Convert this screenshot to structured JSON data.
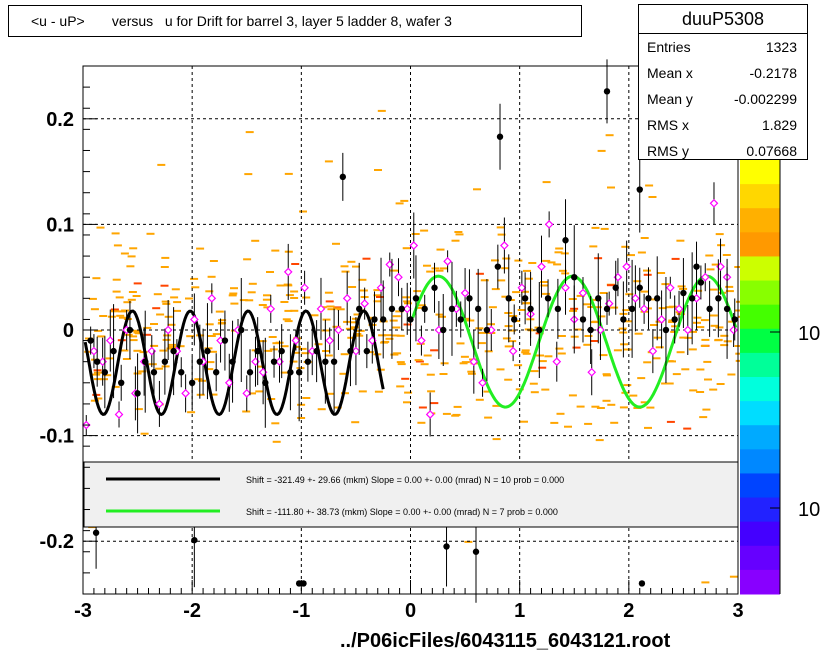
{
  "title": "<u - uP>       versus   u for Drift for barrel 3, layer 5 ladder 8, wafer 3",
  "stats": {
    "name": "duuP5308",
    "rows": [
      {
        "label": "Entries",
        "value": "1323"
      },
      {
        "label": "Mean x",
        "value": "-0.2178"
      },
      {
        "label": "Mean y",
        "value": "-0.002299"
      },
      {
        "label": "RMS x",
        "value": "1.829"
      },
      {
        "label": "RMS y",
        "value": "0.07668"
      }
    ]
  },
  "footer": "../P06icFiles/6043115_6043121.root",
  "colors": {
    "hist": "#ffa500",
    "hist_hot": "#ff4500",
    "black_fit": "#000000",
    "green_fit": "#22ee22",
    "open_marker": "#ff00ff",
    "black_marker": "#000000"
  },
  "chart_data": {
    "type": "scatter",
    "xlim": [
      -3,
      3
    ],
    "ylim": [
      -0.25,
      0.25
    ],
    "x_ticks": [
      "-3",
      "-2",
      "-1",
      "0",
      "1",
      "2",
      "3"
    ],
    "y_ticks": [
      {
        "v": 0.2,
        "label": "0.2"
      },
      {
        "v": 0.1,
        "label": "0.1"
      },
      {
        "v": 0,
        "label": "0"
      },
      {
        "v": -0.1,
        "label": "-0.1"
      },
      {
        "v": -0.2,
        "label": "-0.2"
      }
    ],
    "grid": true,
    "colorbar_labels": [
      {
        "v": 10,
        "label": "10"
      },
      {
        "v": 1,
        "label": "10"
      }
    ],
    "legend": [
      {
        "color": "#000000",
        "text": "Shift =  -321.49 +- 29.66 (mkm) Slope =     0.00 +- 0.00 (mrad)  N = 10 prob = 0.000"
      },
      {
        "color": "#22ee22",
        "text": "Shift =  -111.80 +- 38.73 (mkm) Slope =     0.00 +- 0.00 (mrad)  N = 7 prob = 0.000"
      }
    ],
    "fits": [
      {
        "name": "black",
        "color": "#000000",
        "x_range": [
          -2.98,
          -0.25
        ],
        "amplitude": 0.049,
        "offset": -0.031,
        "period": 0.53,
        "phase": 0.36
      },
      {
        "name": "green",
        "color": "#22ee22",
        "x_range": [
          0.02,
          2.98
        ],
        "amplitude": 0.062,
        "offset": -0.011,
        "period": 1.23,
        "phase": 0.27
      }
    ],
    "black_points": [
      [
        -2.93,
        -0.01
      ],
      [
        -2.87,
        -0.03
      ],
      [
        -2.8,
        -0.04
      ],
      [
        -2.72,
        -0.02
      ],
      [
        -2.65,
        -0.05
      ],
      [
        -2.57,
        0.0
      ],
      [
        -2.5,
        -0.06
      ],
      [
        -2.43,
        -0.03
      ],
      [
        -2.35,
        -0.04
      ],
      [
        -2.25,
        -0.03
      ],
      [
        -2.17,
        -0.02
      ],
      [
        -2.1,
        -0.04
      ],
      [
        -2.0,
        -0.05
      ],
      [
        -1.93,
        -0.03
      ],
      [
        -1.86,
        -0.02
      ],
      [
        -1.78,
        -0.04
      ],
      [
        -1.7,
        -0.01
      ],
      [
        -1.63,
        -0.03
      ],
      [
        -1.55,
        0.0
      ],
      [
        -1.47,
        -0.04
      ],
      [
        -1.4,
        -0.02
      ],
      [
        -1.33,
        -0.05
      ],
      [
        -1.25,
        -0.03
      ],
      [
        -1.18,
        -0.02
      ],
      [
        -1.1,
        -0.04
      ],
      [
        -1.02,
        -0.04
      ],
      [
        -0.94,
        -0.03
      ],
      [
        -0.86,
        -0.02
      ],
      [
        -0.78,
        -0.03
      ],
      [
        -0.7,
        -0.03
      ],
      [
        -0.62,
        0.145
      ],
      [
        -0.55,
        -0.02
      ],
      [
        -0.47,
        0.02
      ],
      [
        -0.4,
        -0.02
      ],
      [
        -0.33,
        0.01
      ],
      [
        -0.25,
        0.01
      ],
      [
        -0.17,
        0.02
      ],
      [
        -0.08,
        0.02
      ],
      [
        0.0,
        0.01
      ],
      [
        0.05,
        0.03
      ],
      [
        0.13,
        0.02
      ],
      [
        0.22,
        0.04
      ],
      [
        0.3,
        0.0
      ],
      [
        0.38,
        0.02
      ],
      [
        0.46,
        0.01
      ],
      [
        0.54,
        0.03
      ],
      [
        0.62,
        0.02
      ],
      [
        0.7,
        0.0
      ],
      [
        0.8,
        0.06
      ],
      [
        0.82,
        0.183
      ],
      [
        0.9,
        0.03
      ],
      [
        0.95,
        0.01
      ],
      [
        1.05,
        0.03
      ],
      [
        1.1,
        0.02
      ],
      [
        1.18,
        0.0
      ],
      [
        1.26,
        0.03
      ],
      [
        1.35,
        0.02
      ],
      [
        1.42,
        0.085
      ],
      [
        1.5,
        0.05
      ],
      [
        1.58,
        0.01
      ],
      [
        1.65,
        0.0
      ],
      [
        1.72,
        0.03
      ],
      [
        1.8,
        0.02
      ],
      [
        1.88,
        0.04
      ],
      [
        1.95,
        0.01
      ],
      [
        2.03,
        0.02
      ],
      [
        2.1,
        0.04
      ],
      [
        2.18,
        0.03
      ],
      [
        2.26,
        0.03
      ],
      [
        2.34,
        0.0
      ],
      [
        2.42,
        0.01
      ],
      [
        2.5,
        0.035
      ],
      [
        2.58,
        0.03
      ],
      [
        2.66,
        0.045
      ],
      [
        2.74,
        0.02
      ],
      [
        2.82,
        0.03
      ],
      [
        2.9,
        0.02
      ],
      [
        2.97,
        0.01
      ],
      [
        1.8,
        0.226
      ],
      [
        2.1,
        0.133
      ],
      [
        2.15,
        0.2
      ],
      [
        2.62,
        0.06
      ],
      [
        -2.88,
        -0.192
      ],
      [
        -1.98,
        -0.199
      ],
      [
        -1.02,
        -0.24
      ],
      [
        -0.98,
        -0.24
      ],
      [
        0.33,
        -0.205
      ],
      [
        0.6,
        -0.21
      ],
      [
        2.12,
        -0.24
      ]
    ],
    "open_points": [
      [
        -2.97,
        -0.09
      ],
      [
        -2.9,
        -0.02
      ],
      [
        -2.82,
        -0.03
      ],
      [
        -2.75,
        -0.01
      ],
      [
        -2.67,
        -0.08
      ],
      [
        -2.6,
        0.0
      ],
      [
        -2.52,
        -0.06
      ],
      [
        -2.44,
        -0.03
      ],
      [
        -2.37,
        -0.02
      ],
      [
        -2.3,
        -0.07
      ],
      [
        -2.22,
        0.0
      ],
      [
        -2.14,
        -0.02
      ],
      [
        -2.06,
        -0.06
      ],
      [
        -1.98,
        0.01
      ],
      [
        -1.9,
        -0.03
      ],
      [
        -1.82,
        0.03
      ],
      [
        -1.74,
        -0.01
      ],
      [
        -1.66,
        -0.05
      ],
      [
        -1.58,
        0.0
      ],
      [
        -1.5,
        -0.06
      ],
      [
        -1.42,
        -0.03
      ],
      [
        -1.35,
        -0.04
      ],
      [
        -1.28,
        0.02
      ],
      [
        -1.2,
        -0.03
      ],
      [
        -1.12,
        0.055
      ],
      [
        -1.05,
        -0.01
      ],
      [
        -0.97,
        0.04
      ],
      [
        -0.9,
        -0.02
      ],
      [
        -0.82,
        0.02
      ],
      [
        -0.74,
        -0.01
      ],
      [
        -0.66,
        0.0
      ],
      [
        -0.58,
        0.03
      ],
      [
        -0.5,
        -0.02
      ],
      [
        -0.42,
        0.025
      ],
      [
        -0.35,
        -0.01
      ],
      [
        -0.27,
        0.04
      ],
      [
        -0.19,
        0.062
      ],
      [
        -0.11,
        0.05
      ],
      [
        -0.03,
        0.02
      ],
      [
        0.03,
        0.08
      ],
      [
        0.1,
        -0.01
      ],
      [
        0.18,
        -0.08
      ],
      [
        0.26,
        0.0
      ],
      [
        0.34,
        0.065
      ],
      [
        0.42,
        0.02
      ],
      [
        0.5,
        0.035
      ],
      [
        0.58,
        -0.03
      ],
      [
        0.66,
        -0.05
      ],
      [
        0.74,
        0.0
      ],
      [
        0.86,
        0.08
      ],
      [
        0.94,
        -0.02
      ],
      [
        1.02,
        0.04
      ],
      [
        1.1,
        0.015
      ],
      [
        1.2,
        0.06
      ],
      [
        1.27,
        0.1
      ],
      [
        1.34,
        -0.03
      ],
      [
        1.42,
        0.04
      ],
      [
        1.5,
        0.01
      ],
      [
        1.58,
        0.035
      ],
      [
        1.66,
        -0.04
      ],
      [
        1.74,
        0.0
      ],
      [
        1.82,
        0.025
      ],
      [
        1.9,
        0.05
      ],
      [
        1.98,
        0.06
      ],
      [
        2.06,
        0.03
      ],
      [
        2.14,
        0.02
      ],
      [
        2.22,
        -0.02
      ],
      [
        2.3,
        0.01
      ],
      [
        2.38,
        0.04
      ],
      [
        2.46,
        0.02
      ],
      [
        2.54,
        0.0
      ],
      [
        2.62,
        0.03
      ],
      [
        2.7,
        0.05
      ],
      [
        2.78,
        0.12
      ],
      [
        2.84,
        0.06
      ],
      [
        2.9,
        0.05
      ],
      [
        2.96,
        0.0
      ]
    ]
  }
}
